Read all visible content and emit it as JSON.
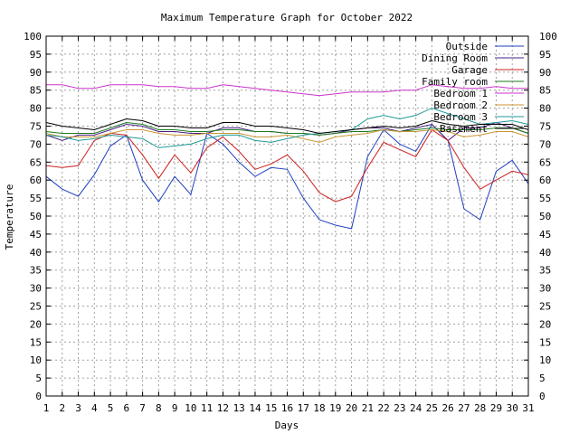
{
  "chart_data": {
    "type": "line",
    "title": "Maximum Temperature Graph for October 2022",
    "xlabel": "Days",
    "ylabel": "Temperature",
    "xlim": [
      1,
      31
    ],
    "ylim": [
      0,
      100
    ],
    "x_ticks": [
      1,
      2,
      3,
      4,
      5,
      6,
      7,
      8,
      9,
      10,
      11,
      12,
      13,
      14,
      15,
      16,
      17,
      18,
      19,
      20,
      21,
      22,
      23,
      24,
      25,
      26,
      27,
      28,
      29,
      30,
      31
    ],
    "y_ticks": [
      0,
      5,
      10,
      15,
      20,
      25,
      30,
      35,
      40,
      45,
      50,
      55,
      60,
      65,
      70,
      75,
      80,
      85,
      90,
      95,
      100
    ],
    "grid": true,
    "grid_style": "dotted",
    "y_axis_mirrored": true,
    "legend_position": "top-right",
    "x": [
      1,
      2,
      3,
      4,
      5,
      6,
      7,
      8,
      9,
      10,
      11,
      12,
      13,
      14,
      15,
      16,
      17,
      18,
      19,
      20,
      21,
      22,
      23,
      24,
      25,
      26,
      27,
      28,
      29,
      30,
      31
    ],
    "series": [
      {
        "name": "Outside",
        "color": "#1f3fbf",
        "values": [
          61,
          57.5,
          55.5,
          61.5,
          69.5,
          72.5,
          60,
          54,
          61,
          56,
          73,
          70,
          65,
          61,
          63.5,
          63,
          55,
          49,
          47.5,
          46.5,
          66.5,
          74,
          70,
          68,
          75.5,
          71,
          52,
          49,
          62.5,
          65.5,
          59
        ]
      },
      {
        "name": "Dining Room",
        "color": "#4b1f86",
        "values": [
          72.5,
          71,
          72.5,
          72.5,
          74,
          75.5,
          75,
          73.5,
          73.5,
          73,
          73,
          74.5,
          74.5,
          73.5,
          73.5,
          73,
          73,
          72.5,
          73,
          74,
          74.5,
          74.5,
          73.5,
          74.5,
          75.5,
          71,
          74.5,
          74.5,
          76,
          74.5,
          73
        ]
      },
      {
        "name": "Garage",
        "color": "#cc2020",
        "values": [
          64,
          63.5,
          64,
          71,
          73,
          72.5,
          67,
          60.5,
          67,
          62,
          69,
          72,
          68,
          63,
          64.5,
          67,
          62.5,
          56.5,
          54,
          55.5,
          63.5,
          70.5,
          68.5,
          66.5,
          74,
          71,
          63.5,
          57.5,
          60,
          62.5,
          61.5
        ]
      },
      {
        "name": "Family room",
        "color": "#1f7a1f",
        "values": [
          73.5,
          73,
          73,
          73,
          74.5,
          76,
          75.5,
          74,
          74,
          73.5,
          73.5,
          74,
          74,
          73.5,
          73.5,
          73,
          73,
          72.5,
          73,
          73.5,
          73.5,
          74,
          73.5,
          74,
          74.5,
          74,
          74,
          74,
          74.5,
          74.5,
          73
        ]
      },
      {
        "name": "Bedroom 1",
        "color": "#cc33cc",
        "values": [
          86.5,
          86.5,
          85.5,
          85.5,
          86.5,
          86.5,
          86.5,
          86,
          86,
          85.5,
          85.5,
          86.5,
          86,
          85.5,
          85,
          84.5,
          84,
          83.5,
          84,
          84.5,
          84.5,
          84.5,
          85,
          85,
          86.5,
          86,
          85.5,
          85.5,
          86,
          85.5,
          85.5
        ]
      },
      {
        "name": "Bedroom 2",
        "color": "#c89632",
        "values": [
          73,
          72,
          72,
          72,
          73,
          74,
          74,
          73,
          72.5,
          72.5,
          73,
          73,
          73,
          72,
          72,
          72.5,
          71.5,
          70.5,
          72,
          72.5,
          73,
          74,
          73.5,
          73.5,
          74,
          73.5,
          72,
          72.5,
          73.5,
          73.5,
          72
        ]
      },
      {
        "name": "Bedroom 3",
        "color": "#1f9a9a",
        "values": [
          72.5,
          72,
          71,
          71.5,
          72.5,
          72,
          71.5,
          69,
          69.5,
          70,
          71.5,
          72.5,
          72.5,
          71,
          70.5,
          71.5,
          72.5,
          73,
          73.5,
          74,
          77,
          78,
          77,
          78,
          80,
          78.5,
          77,
          75.5,
          76,
          76.5,
          75.5
        ]
      },
      {
        "name": "Basement",
        "color": "#000000",
        "values": [
          76,
          75,
          74.5,
          74,
          75.5,
          77,
          76.5,
          75,
          75,
          74.5,
          74.5,
          76,
          76,
          75,
          75,
          74.5,
          74,
          73,
          73.5,
          74,
          74.5,
          75,
          74.5,
          75,
          76.5,
          75.5,
          75,
          75.5,
          75.5,
          75.5,
          74
        ]
      }
    ]
  }
}
